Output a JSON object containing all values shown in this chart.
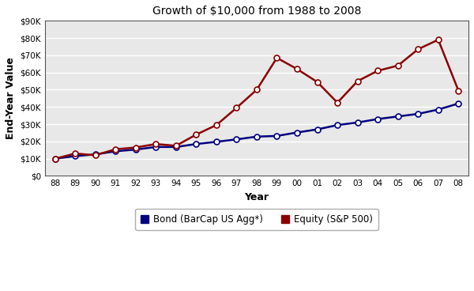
{
  "title": "Growth of $10,000 from 1988 to 2008",
  "xlabel": "Year",
  "ylabel": "End-Year Value",
  "years": [
    1988,
    1989,
    1990,
    1991,
    1992,
    1993,
    1994,
    1995,
    1996,
    1997,
    1998,
    1999,
    2000,
    2001,
    2002,
    2003,
    2004,
    2005,
    2006,
    2007,
    2008
  ],
  "year_labels": [
    "88",
    "89",
    "90",
    "91",
    "92",
    "93",
    "94",
    "95",
    "96",
    "97",
    "98",
    "99",
    "00",
    "01",
    "02",
    "03",
    "04",
    "05",
    "06",
    "07",
    "08"
  ],
  "bond_values": [
    10000,
    11500,
    12500,
    14300,
    15300,
    16800,
    16800,
    18500,
    19800,
    21200,
    22800,
    23200,
    25200,
    27000,
    29500,
    31000,
    33000,
    34500,
    36000,
    38500,
    42000
  ],
  "equity_values": [
    10000,
    13000,
    12000,
    15500,
    16500,
    18500,
    17500,
    24000,
    29500,
    39500,
    50000,
    68500,
    62000,
    54500,
    42500,
    55000,
    61000,
    64000,
    73500,
    79000,
    49500
  ],
  "bond_color": "#000080",
  "equity_color": "#8B0000",
  "bond_label": "Bond (BarCap US Agg*)",
  "equity_label": "Equity (S&P 500)",
  "marker_style": "o",
  "marker_facecolor": "white",
  "marker_size": 5,
  "marker_linewidth": 1.2,
  "ylim": [
    0,
    90000
  ],
  "ytick_values": [
    0,
    10000,
    20000,
    30000,
    40000,
    50000,
    60000,
    70000,
    80000,
    90000
  ],
  "ytick_labels": [
    "$0",
    "$10K",
    "$20K",
    "$30K",
    "$40K",
    "$50K",
    "$60K",
    "$70K",
    "$80K",
    "$90K"
  ],
  "fig_bg_color": "#ffffff",
  "plot_bg_color": "#e8e8e8",
  "grid_color": "#ffffff",
  "title_fontsize": 10,
  "axis_label_fontsize": 9,
  "tick_fontsize": 7.5,
  "legend_fontsize": 8.5,
  "line_width": 1.8
}
